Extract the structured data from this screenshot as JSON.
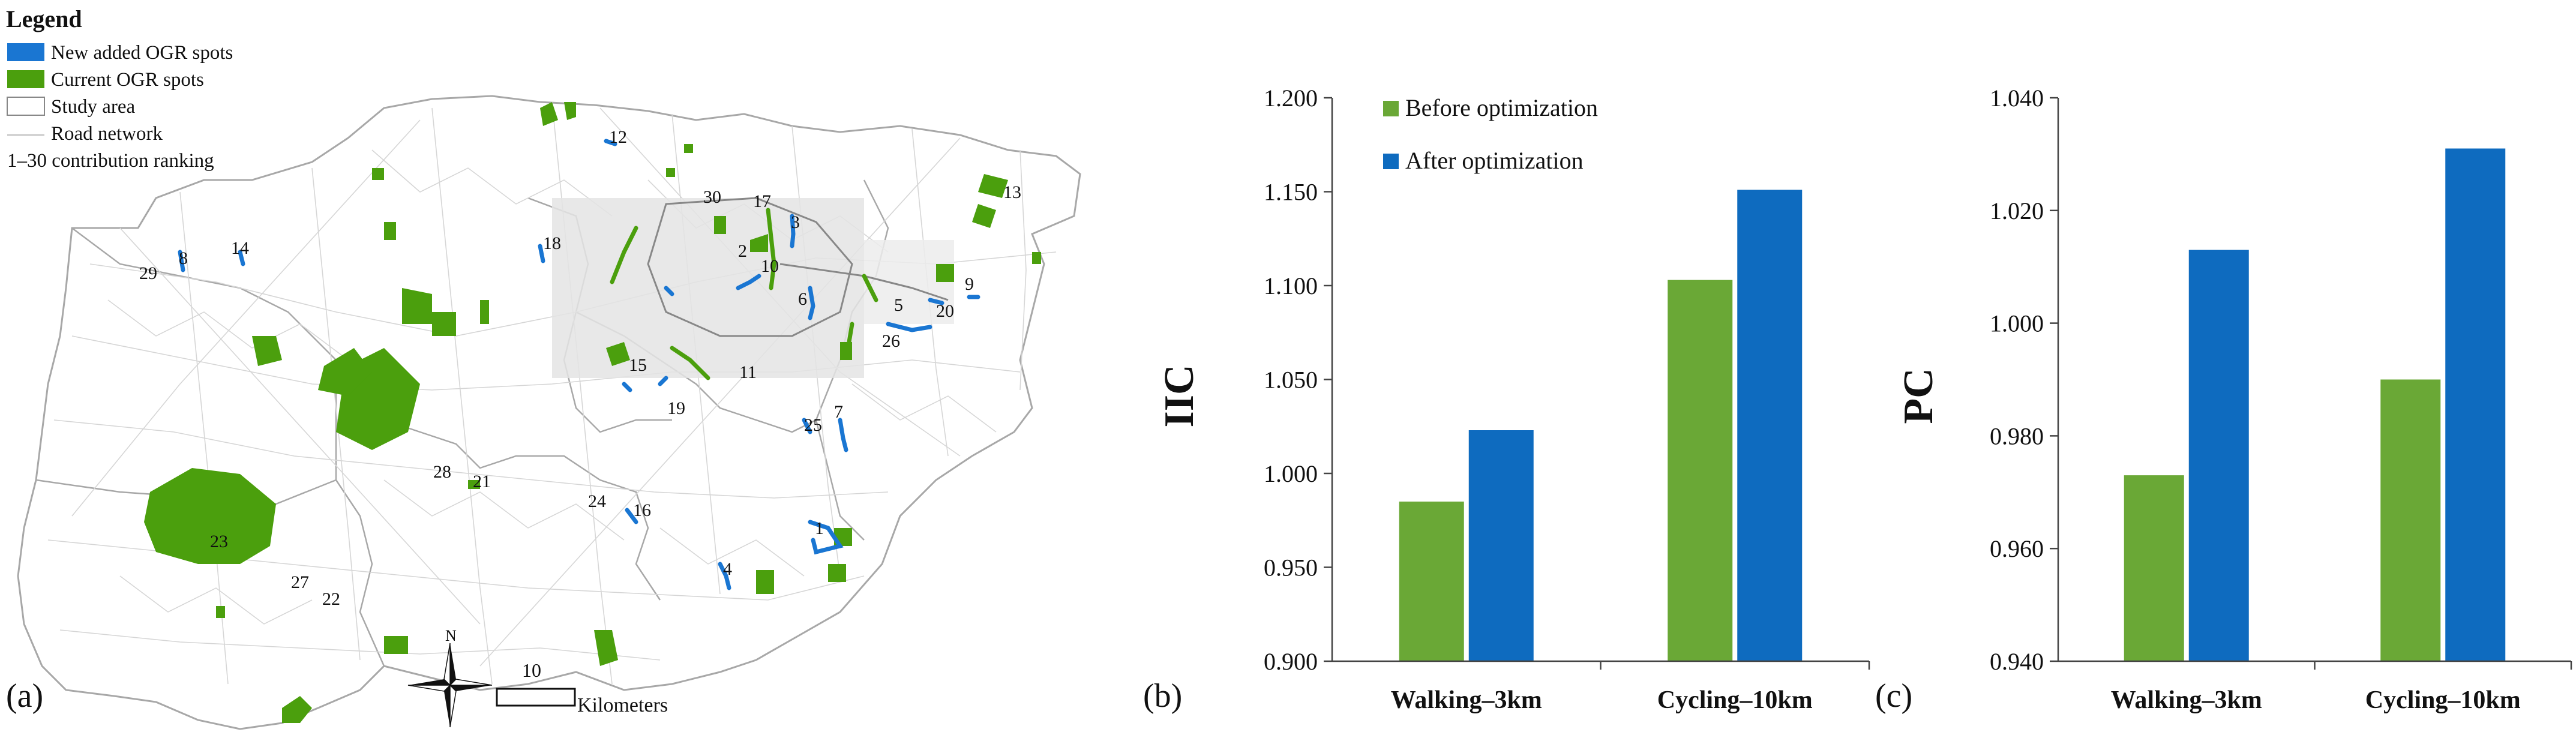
{
  "colors": {
    "current": "#4b9f0d",
    "added": "#1a76d2",
    "before": "#6aa836",
    "after": "#0e6bbf",
    "road": "#cfcfcf",
    "boundary": "#a8a8a8"
  },
  "map": {
    "panel_label": "(a)",
    "legend": {
      "title": "Legend",
      "items": [
        {
          "label": "New added OGR spots",
          "kind": "added"
        },
        {
          "label": "Current OGR spots",
          "kind": "current"
        },
        {
          "label": "Study area",
          "kind": "study"
        },
        {
          "label": "Road network",
          "kind": "road"
        },
        {
          "label": "1–30 contribution ranking",
          "kind": "rank"
        }
      ]
    },
    "north_label": "N",
    "scale_value": "10",
    "scale_unit": "Kilometers",
    "rank_labels": [
      "1",
      "2",
      "3",
      "4",
      "5",
      "6",
      "7",
      "8",
      "9",
      "10",
      "11",
      "12",
      "13",
      "14",
      "15",
      "16",
      "17",
      "18",
      "19",
      "20",
      "21",
      "22",
      "23",
      "24",
      "25",
      "26",
      "27",
      "28",
      "29",
      "30"
    ]
  },
  "chart_data": [
    {
      "type": "bar",
      "panel_label": "(b)",
      "ylabel": "IIC",
      "categories": [
        "Walking–3km",
        "Cycling–10km"
      ],
      "series": [
        {
          "name": "Before optimization",
          "values": [
            0.985,
            1.103
          ]
        },
        {
          "name": "After optimization",
          "values": [
            1.023,
            1.151
          ]
        }
      ],
      "ylim": [
        0.9,
        1.2
      ],
      "yticks": [
        "0.900",
        "0.950",
        "1.000",
        "1.050",
        "1.100",
        "1.150",
        "1.200"
      ],
      "legend_position": "top-left"
    },
    {
      "type": "bar",
      "panel_label": "(c)",
      "ylabel": "PC",
      "categories": [
        "Walking–3km",
        "Cycling–10km"
      ],
      "series": [
        {
          "name": "Before optimization",
          "values": [
            0.973,
            0.99
          ]
        },
        {
          "name": "After optimization",
          "values": [
            1.013,
            1.031
          ]
        }
      ],
      "ylim": [
        0.94,
        1.04
      ],
      "yticks": [
        "0.940",
        "0.960",
        "0.980",
        "1.000",
        "1.020",
        "1.040"
      ],
      "legend_position": "none"
    }
  ]
}
